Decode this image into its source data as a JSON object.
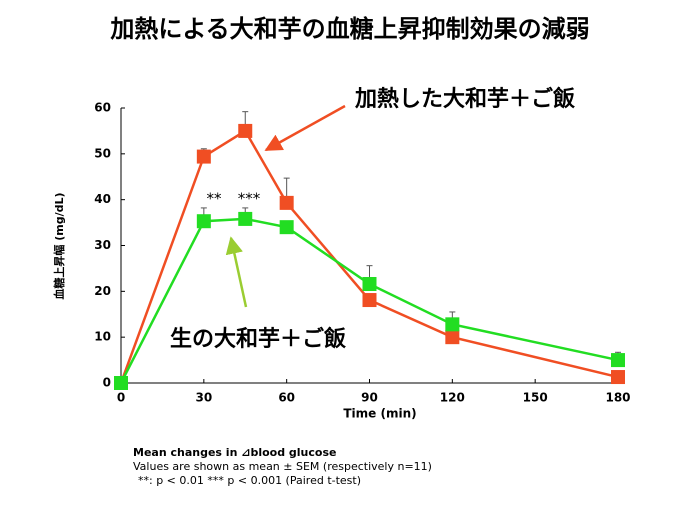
{
  "chart_data": {
    "type": "line",
    "title": "加熱による大和芋の血糖上昇抑制効果の減弱",
    "x_label": "Time (min)",
    "y_label": "血糖上昇幅 (mg/dL)",
    "x": [
      0,
      30,
      45,
      60,
      90,
      120,
      180
    ],
    "series": [
      {
        "name": "加熱した大和芋＋ご飯",
        "color": "#f04e23",
        "values": [
          0,
          49.4,
          55,
          39.3,
          18.1,
          10,
          1.3
        ],
        "errors": [
          null,
          1.7,
          4.2,
          5.4,
          null,
          null,
          null
        ]
      },
      {
        "name": "生の大和芋＋ご飯",
        "color": "#22dd22",
        "values": [
          0,
          35.3,
          35.8,
          34,
          21.6,
          12.8,
          5
        ],
        "errors": [
          null,
          2.9,
          2.4,
          null,
          4,
          2.7,
          1.7
        ]
      }
    ],
    "annotations": [
      "**",
      "***"
    ],
    "notes": [
      "Mean changes in ⊿blood glucose",
      "Values are shown as mean ± SEM (respectively n=11)",
      "**: p < 0.01  *** p < 0.001  (Paired  t-test)"
    ],
    "xlim": [
      0,
      180
    ],
    "xticks": [
      0,
      30,
      60,
      90,
      120,
      150,
      180
    ],
    "ylim": [
      0,
      60
    ],
    "yticks": [
      0,
      10,
      20,
      30,
      40,
      50,
      60
    ],
    "grid": false
  }
}
